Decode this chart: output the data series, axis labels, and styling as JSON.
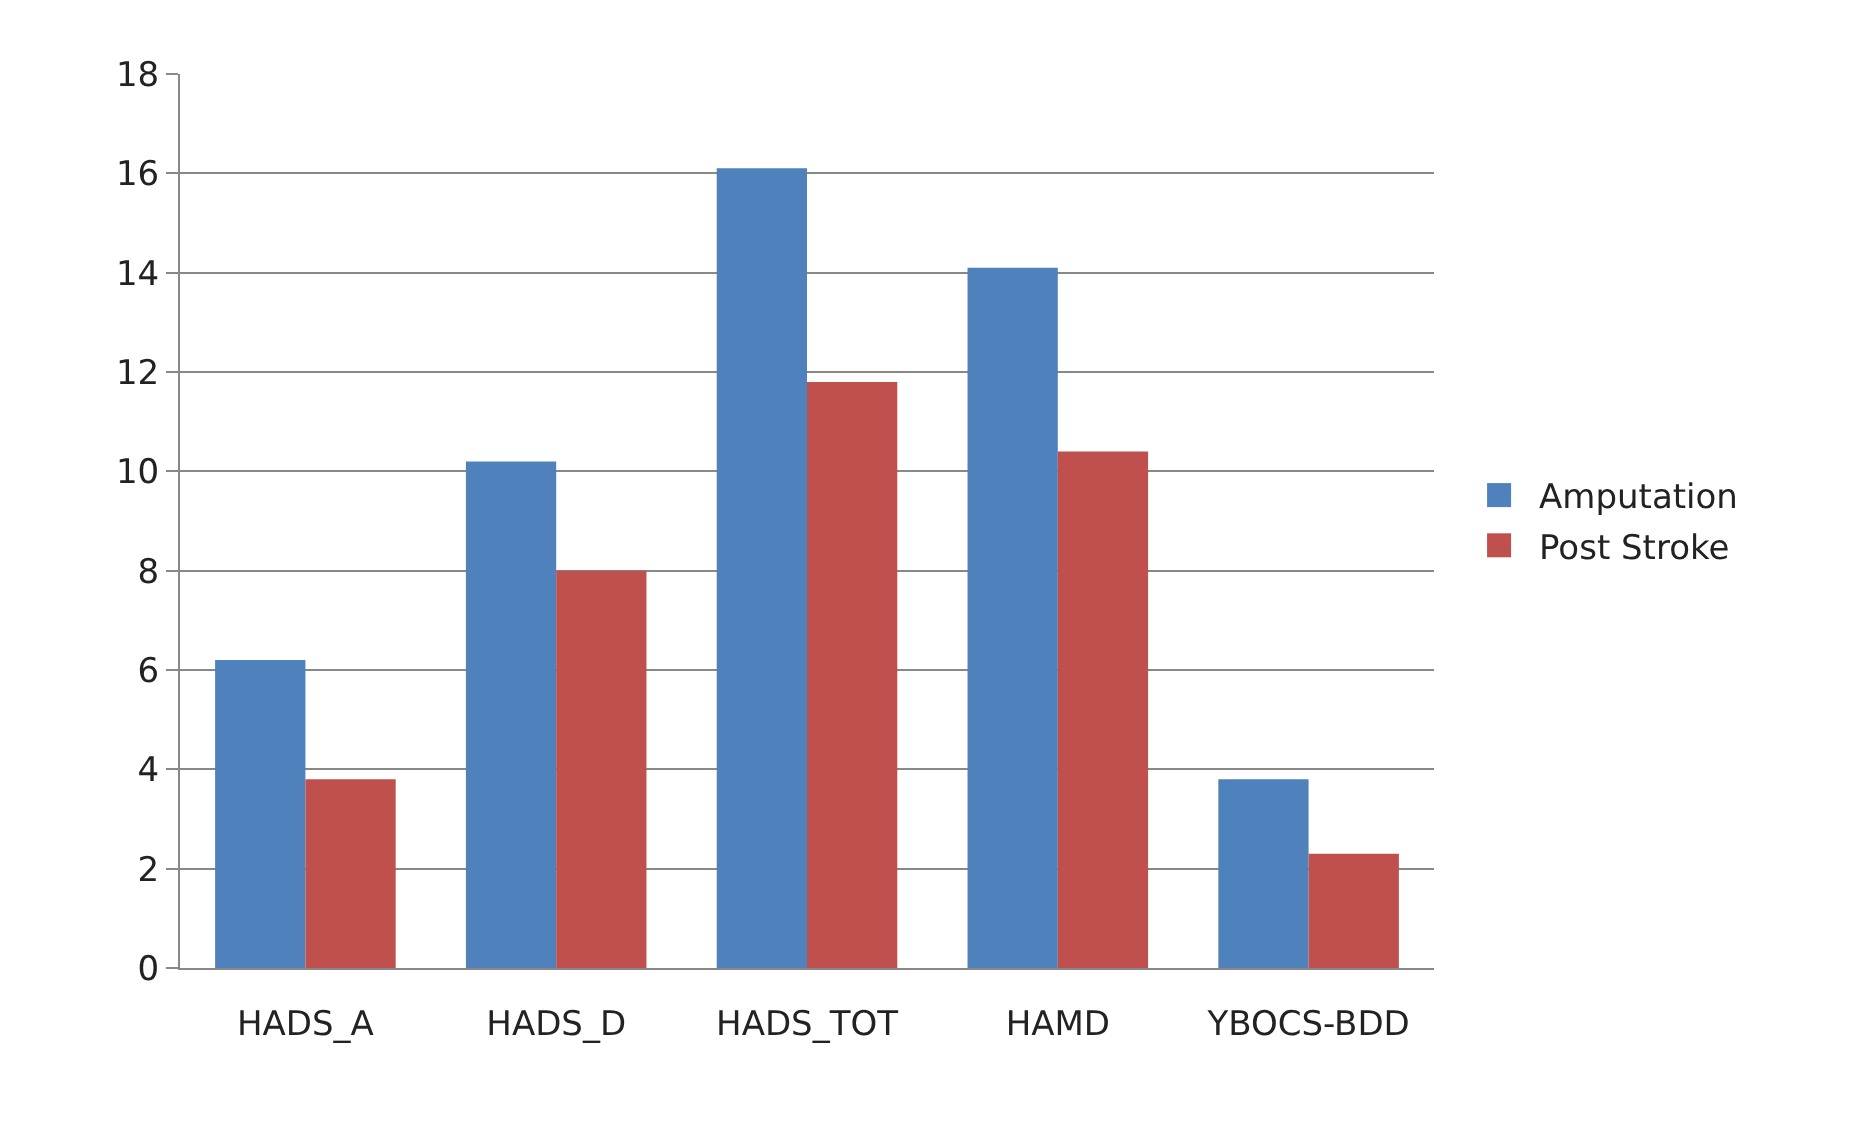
{
  "chart_data": {
    "type": "bar",
    "categories": [
      "HADS_A",
      "HADS_D",
      "HADS_TOT",
      "HAMD",
      "YBOCS-BDD"
    ],
    "series": [
      {
        "name": "Amputation",
        "color": "#4f81bd",
        "values": [
          6.2,
          10.2,
          16.1,
          14.1,
          3.8
        ]
      },
      {
        "name": "Post Stroke",
        "color": "#c0504d",
        "values": [
          3.8,
          8.0,
          11.8,
          10.4,
          2.3
        ]
      }
    ],
    "ylim": [
      0,
      18
    ],
    "yticks": [
      0,
      2,
      4,
      6,
      8,
      10,
      12,
      14,
      16,
      18
    ],
    "grid": "y",
    "legend": "right"
  }
}
